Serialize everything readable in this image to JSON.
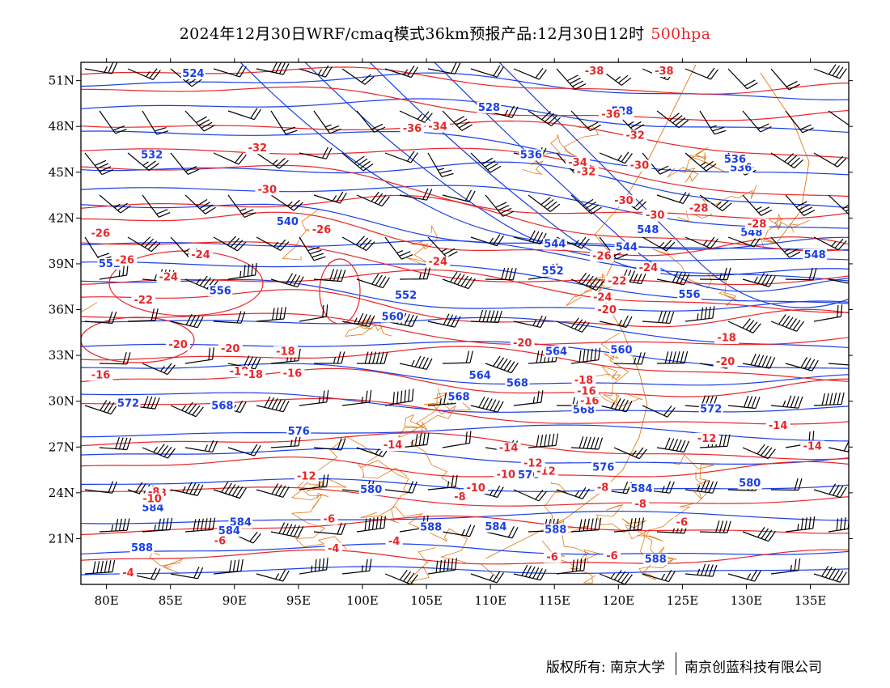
{
  "title": {
    "main": "2024年12月30日WRF/cmaq模式36km预报产品:12月30日12时",
    "level": "500hpa"
  },
  "axes": {
    "lon_labels": [
      "80E",
      "85E",
      "90E",
      "95E",
      "100E",
      "105E",
      "110E",
      "115E",
      "120E",
      "125E",
      "130E",
      "135E"
    ],
    "lat_labels": [
      "51N",
      "48N",
      "45N",
      "42N",
      "39N",
      "36N",
      "33N",
      "30N",
      "27N",
      "24N",
      "21N"
    ],
    "lon_range": [
      78,
      138
    ],
    "lat_range": [
      18,
      52.2
    ]
  },
  "colors": {
    "height_contour": "#1a3ee6",
    "temperature_contour": "#e8262a",
    "boundaries": "#e07a1a",
    "wind_barb": "#000000"
  },
  "height_labels": [
    "548",
    "544",
    "536",
    "540",
    "552",
    "548",
    "528",
    "524",
    "556",
    "560",
    "552",
    "528",
    "532",
    "544",
    "560",
    "552",
    "548",
    "536",
    "536",
    "568",
    "564",
    "556",
    "564",
    "568",
    "568",
    "572",
    "588",
    "568",
    "572",
    "576",
    "576",
    "576",
    "580",
    "580",
    "584",
    "584",
    "584",
    "584",
    "588",
    "584",
    "588",
    "588"
  ],
  "temperature_labels": [
    "-32",
    "-30",
    "-34",
    "-36",
    "-38",
    "-28",
    "-32",
    "-30",
    "-28",
    "-30",
    "-26",
    "-24",
    "-24",
    "-22",
    "-36",
    "-38",
    "-34",
    "-32",
    "-30",
    "-20",
    "-28",
    "-26",
    "-18",
    "-26",
    "-26",
    "-24",
    "-24",
    "-24",
    "-22",
    "-20",
    "-20",
    "-20",
    "-18",
    "-20",
    "-18",
    "-18",
    "-16",
    "-18",
    "-16",
    "-16",
    "-14",
    "-14",
    "-12",
    "-12",
    "-14",
    "-16",
    "-12",
    "-10",
    "-8",
    "-14",
    "-10",
    "-8",
    "-8",
    "-6",
    "-6",
    "-6",
    "-12",
    "-6",
    "-8",
    "-4",
    "-10",
    "-6",
    "-8",
    "-4",
    "-4"
  ],
  "footer": {
    "copyright": "版权所有: 南京大学",
    "company": "南京创蓝科技有限公司"
  }
}
